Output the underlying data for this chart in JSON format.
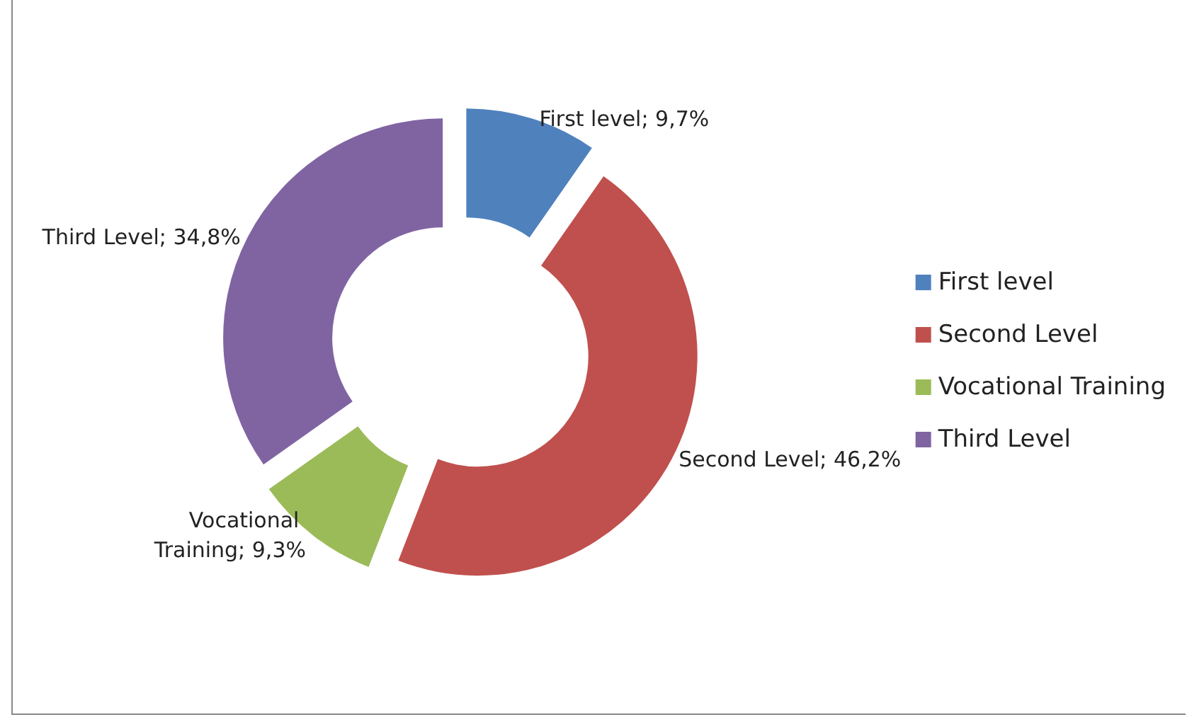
{
  "chart_data": {
    "type": "donut",
    "categories": [
      "First level",
      "Second Level",
      "Vocational Training",
      "Third Level"
    ],
    "values": [
      9.7,
      46.2,
      9.3,
      34.8
    ],
    "colors": [
      "#4f81bd",
      "#c0504d",
      "#9bbb59",
      "#8064a2"
    ],
    "value_labels": [
      "First level; 9,7%",
      "Second Level; 46,2%",
      "Vocational Training; 9,3%",
      "Third Level; 34,8%"
    ],
    "legend": "right"
  }
}
